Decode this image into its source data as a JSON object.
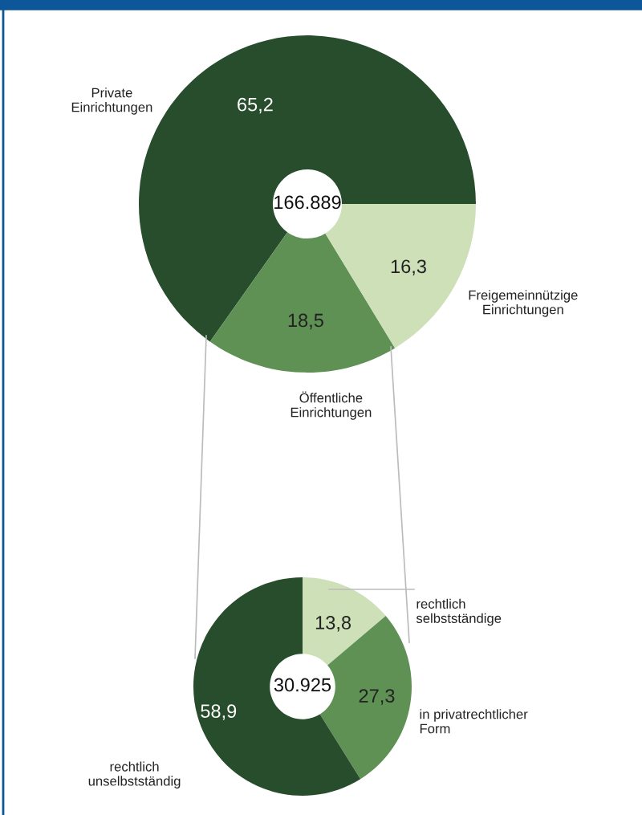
{
  "chart_data": [
    {
      "type": "donut",
      "categories": [
        "Private\nEinrichtungen",
        "Öffentliche\nEinrichtungen",
        "Freigemeinnützige\nEinrichtungen"
      ],
      "values": [
        65.2,
        18.5,
        16.3
      ],
      "value_labels": [
        "65,2",
        "18,5",
        "16,3"
      ],
      "colors": [
        "#274d2c",
        "#5f9155",
        "#cde0b8"
      ],
      "annotations": [
        "166.889"
      ]
    },
    {
      "type": "donut",
      "categories": [
        "rechtlich\nselbstständige",
        "in privatrechtlicher\nForm",
        "rechtlich\nunselbstständig"
      ],
      "values": [
        13.8,
        27.3,
        58.9
      ],
      "value_labels": [
        "13,8",
        "27,3",
        "58,9"
      ],
      "colors": [
        "#cde0b8",
        "#5f9155",
        "#274d2c"
      ],
      "annotations": [
        "30.925"
      ]
    }
  ]
}
